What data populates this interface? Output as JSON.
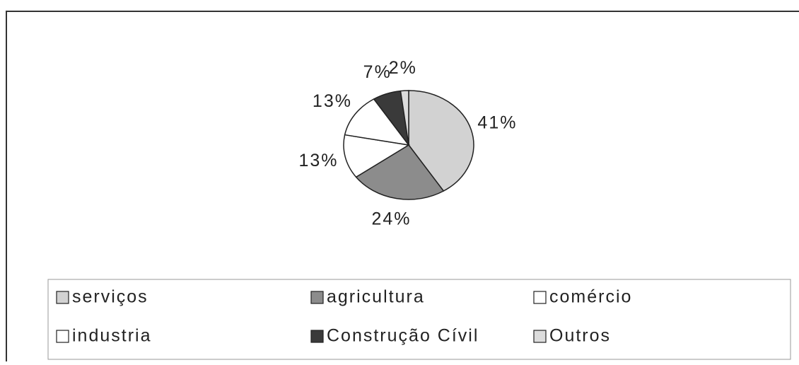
{
  "chart_data": {
    "type": "pie",
    "categories": [
      "serviços",
      "agricultura",
      "comércio",
      "industria",
      "Construção Cívil",
      "Outros"
    ],
    "values": [
      41,
      24,
      13,
      13,
      7,
      2
    ],
    "value_labels": [
      "41%",
      "24%",
      "13%",
      "13%",
      "7%",
      "2%"
    ],
    "colors": [
      "#d2d2d2",
      "#8c8c8c",
      "#ffffff",
      "#ffffff",
      "#3a3a3a",
      "#dcdcdc"
    ],
    "legend": "bottom"
  }
}
